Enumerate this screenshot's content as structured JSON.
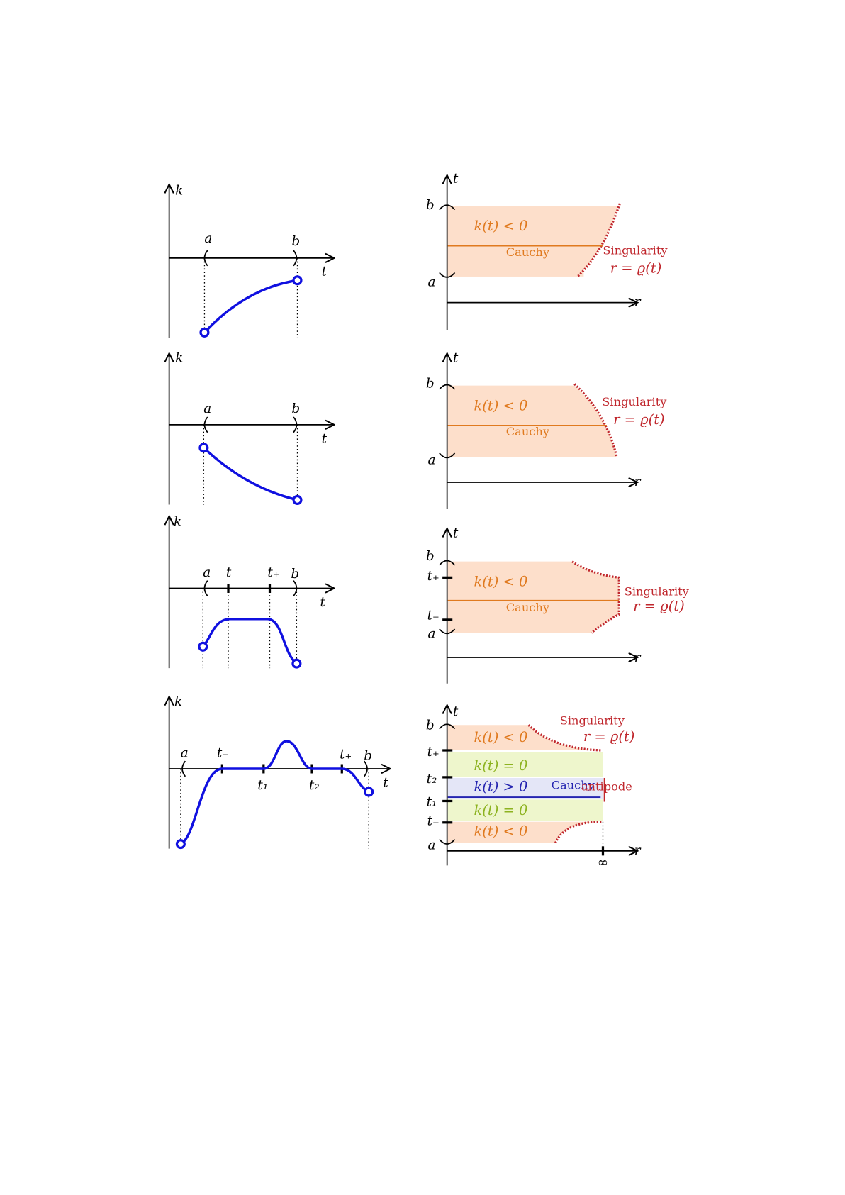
{
  "rows": [
    {
      "left": {
        "y_label": "k",
        "x_label": "t",
        "ticks": [
          "a",
          "b"
        ]
      },
      "right": {
        "y_label": "t",
        "x_label": "r",
        "ticks": [
          "b",
          "a"
        ],
        "regions": [
          "k(t) < 0"
        ],
        "cauchy": "Cauchy",
        "singularity": "Singularity",
        "singularity_eq": "r = ϱ(t)"
      }
    },
    {
      "left": {
        "y_label": "k",
        "x_label": "t",
        "ticks": [
          "a",
          "b"
        ]
      },
      "right": {
        "y_label": "t",
        "x_label": "r",
        "ticks": [
          "b",
          "a"
        ],
        "regions": [
          "k(t) < 0"
        ],
        "cauchy": "Cauchy",
        "singularity": "Singularity",
        "singularity_eq": "r = ϱ(t)"
      }
    },
    {
      "left": {
        "y_label": "k",
        "x_label": "t",
        "ticks": [
          "a",
          "t₋",
          "t₊",
          "b"
        ]
      },
      "right": {
        "y_label": "t",
        "x_label": "r",
        "ticks": [
          "b",
          "t₊",
          "t₋",
          "a"
        ],
        "regions": [
          "k(t) < 0"
        ],
        "cauchy": "Cauchy",
        "singularity": "Singularity",
        "singularity_eq": "r = ϱ(t)"
      }
    },
    {
      "left": {
        "y_label": "k",
        "x_label": "t",
        "ticks": [
          "a",
          "t₋",
          "t₁",
          "t₂",
          "t₊",
          "b"
        ]
      },
      "right": {
        "y_label": "t",
        "x_label": "r",
        "ticks": [
          "b",
          "t₊",
          "t₂",
          "t₁",
          "t₋",
          "a"
        ],
        "regions": [
          "k(t) < 0",
          "k(t) = 0",
          "k(t) > 0",
          "k(t) = 0",
          "k(t) < 0"
        ],
        "cauchy": "Cauchy",
        "singularity": "Singularity",
        "singularity_eq": "r = ϱ(t)",
        "antipode": "antipode",
        "infinity": "∞"
      }
    }
  ]
}
